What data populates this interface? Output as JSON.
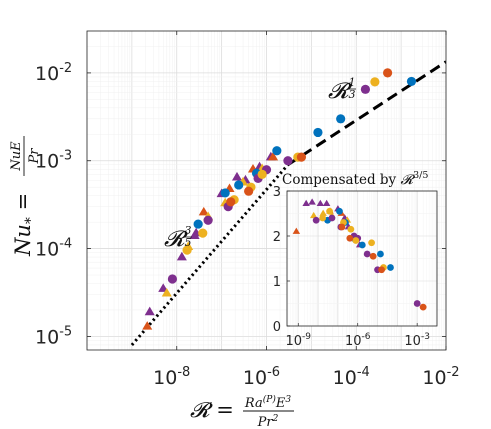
{
  "chart_data": [
    {
      "type": "scatter",
      "scale": {
        "x": "log",
        "y": "log"
      },
      "xlim": [
        1e-10,
        0.01
      ],
      "ylim": [
        7e-06,
        0.03
      ],
      "grid": true,
      "xticks": [
        {
          "value": 1e-08,
          "base": "10",
          "exp": "-8"
        },
        {
          "value": 1e-06,
          "base": "10",
          "exp": "-6"
        },
        {
          "value": 0.0001,
          "base": "10",
          "exp": "-4"
        },
        {
          "value": 0.01,
          "base": "10",
          "exp": "-2"
        }
      ],
      "yticks": [
        {
          "value": 1e-05,
          "base": "10",
          "exp": "-5"
        },
        {
          "value": 0.0001,
          "base": "10",
          "exp": "-4"
        },
        {
          "value": 0.001,
          "base": "10",
          "exp": "-3"
        },
        {
          "value": 0.01,
          "base": "10",
          "exp": "-2"
        }
      ],
      "xlabel": "𝓡 = Ra⁽ᴾ⁾E³ / Pr²",
      "ylabel": "Nu* = NuE / Pr",
      "annotations": [
        {
          "text": "𝓡",
          "exp": "3/5",
          "near": "dotted line"
        },
        {
          "text": "𝓡",
          "exp": "1/3",
          "near": "dashed line"
        }
      ],
      "fits": [
        {
          "style": "dotted",
          "x": [
            1e-09,
            3e-06
          ],
          "y": [
            7.98e-06,
            0.0009
          ],
          "color": "#000000"
        },
        {
          "style": "dashed",
          "x": [
            3e-06,
            0.01
          ],
          "y": [
            0.0009,
            0.0134
          ],
          "color": "#000000"
        }
      ],
      "series": [
        {
          "marker": "triangle",
          "color": "#7E2F8E",
          "points": [
            [
              2.5e-09,
              1.9e-05
            ],
            [
              5e-09,
              3.5e-05
            ],
            [
              1.3e-08,
              8e-05
            ],
            [
              2.5e-08,
              0.00014
            ],
            [
              2.7e-08,
              0.00015
            ],
            [
              1e-07,
              0.00042
            ],
            [
              2.2e-07,
              0.00065
            ],
            [
              3.4e-07,
              0.0006
            ],
            [
              7e-07,
              0.00085
            ],
            [
              1.25e-06,
              0.0011
            ]
          ]
        },
        {
          "marker": "triangle",
          "color": "#D95319",
          "points": [
            [
              2.2e-09,
              1.3e-05
            ],
            [
              4e-08,
              0.00026
            ],
            [
              1.5e-07,
              0.00048
            ],
            [
              5e-07,
              0.0008
            ],
            [
              1.4e-06,
              0.0011
            ]
          ]
        },
        {
          "marker": "triangle",
          "color": "#EDB120",
          "points": [
            [
              6e-09,
              3.1e-05
            ],
            [
              1.8e-08,
              0.000105
            ],
            [
              5e-08,
              0.00023
            ],
            [
              1.2e-07,
              0.00033
            ],
            [
              3e-07,
              0.00057
            ],
            [
              8e-07,
              0.00081
            ]
          ]
        },
        {
          "marker": "circle",
          "color": "#0072BD",
          "points": [
            [
              3e-08,
              0.00019
            ],
            [
              1.2e-07,
              0.00043
            ],
            [
              2.4e-07,
              0.00053
            ],
            [
              6e-07,
              0.00072
            ],
            [
              1.7e-06,
              0.0013
            ],
            [
              1.4e-05,
              0.0021
            ],
            [
              4.5e-05,
              0.003
            ],
            [
              0.0017,
              0.008
            ]
          ]
        },
        {
          "marker": "circle",
          "color": "#7E2F8E",
          "points": [
            [
              8e-09,
              4.5e-05
            ],
            [
              5e-08,
              0.00021
            ],
            [
              1.4e-07,
              0.0003
            ],
            [
              6.5e-07,
              0.00063
            ],
            [
              1e-06,
              0.00079
            ],
            [
              3e-06,
              0.001
            ],
            [
              0.00016,
              0.0065
            ]
          ]
        },
        {
          "marker": "circle",
          "color": "#EDB120",
          "points": [
            [
              1.7e-08,
              9.6e-05
            ],
            [
              3.8e-08,
              0.00015
            ],
            [
              1.9e-07,
              0.00036
            ],
            [
              4.5e-07,
              0.0005
            ],
            [
              8e-07,
              0.0007
            ],
            [
              5e-06,
              0.0011
            ],
            [
              0.00026,
              0.0079
            ]
          ]
        },
        {
          "marker": "circle",
          "color": "#D95319",
          "points": [
            [
              1.6e-07,
              0.00034
            ],
            [
              4e-07,
              0.00045
            ],
            [
              6e-06,
              0.0011
            ],
            [
              0.0005,
              0.01
            ]
          ]
        }
      ]
    },
    {
      "type": "scatter",
      "title": "Compensated by 𝓡^3/5",
      "title_parts": {
        "text": "Compensated by ",
        "sym": "𝓡",
        "exp": "3/5"
      },
      "scale": {
        "x": "log",
        "y": "linear"
      },
      "xlim": [
        2.7e-10,
        0.01
      ],
      "ylim": [
        0,
        3
      ],
      "grid": true,
      "xticks": [
        {
          "value": 1e-09,
          "base": "10",
          "exp": "-9"
        },
        {
          "value": 1e-06,
          "base": "10",
          "exp": "-6"
        },
        {
          "value": 0.001,
          "base": "10",
          "exp": "-3"
        }
      ],
      "yticks": [
        0,
        1,
        2,
        3
      ],
      "series": [
        {
          "marker": "triangle",
          "color": "#7E2F8E",
          "points": [
            [
              2.5e-09,
              2.72
            ],
            [
              5e-09,
              2.75
            ],
            [
              1.3e-08,
              2.72
            ],
            [
              2.7e-08,
              2.72
            ],
            [
              1e-07,
              2.6
            ],
            [
              2.2e-07,
              2.4
            ],
            [
              3.4e-07,
              2.2
            ],
            [
              1.25e-06,
              1.8
            ]
          ]
        },
        {
          "marker": "triangle",
          "color": "#D95319",
          "points": [
            [
              8e-10,
              2.1
            ],
            [
              4e-08,
              2.55
            ],
            [
              1.5e-07,
              2.5
            ]
          ]
        },
        {
          "marker": "triangle",
          "color": "#EDB120",
          "points": [
            [
              6e-09,
              2.45
            ],
            [
              1.8e-08,
              2.5
            ],
            [
              5e-08,
              2.45
            ],
            [
              3e-07,
              2.35
            ]
          ]
        },
        {
          "marker": "circle",
          "color": "#0072BD",
          "points": [
            [
              3e-08,
              2.35
            ],
            [
              1.2e-07,
              2.55
            ],
            [
              2.4e-07,
              2.3
            ],
            [
              6e-07,
              1.95
            ],
            [
              1.7e-06,
              1.8
            ],
            [
              1.4e-05,
              1.6
            ],
            [
              4.5e-05,
              1.3
            ]
          ]
        },
        {
          "marker": "circle",
          "color": "#7E2F8E",
          "points": [
            [
              8e-09,
              2.35
            ],
            [
              5e-08,
              2.4
            ],
            [
              1.4e-07,
              2.2
            ],
            [
              6.5e-07,
              2.0
            ],
            [
              1e-06,
              1.95
            ],
            [
              3e-06,
              1.6
            ],
            [
              1e-05,
              1.25
            ],
            [
              0.001,
              0.5
            ]
          ]
        },
        {
          "marker": "circle",
          "color": "#EDB120",
          "points": [
            [
              1.7e-08,
              2.4
            ],
            [
              3.8e-08,
              2.55
            ],
            [
              1.9e-07,
              2.3
            ],
            [
              4.5e-07,
              2.15
            ],
            [
              8e-07,
              1.9
            ],
            [
              5e-06,
              1.85
            ],
            [
              2e-05,
              1.3
            ]
          ]
        },
        {
          "marker": "circle",
          "color": "#D95319",
          "points": [
            [
              1.6e-07,
              2.2
            ],
            [
              4e-07,
              1.95
            ],
            [
              6e-06,
              1.55
            ],
            [
              1.6e-05,
              1.25
            ],
            [
              0.002,
              0.42
            ]
          ]
        }
      ]
    }
  ]
}
